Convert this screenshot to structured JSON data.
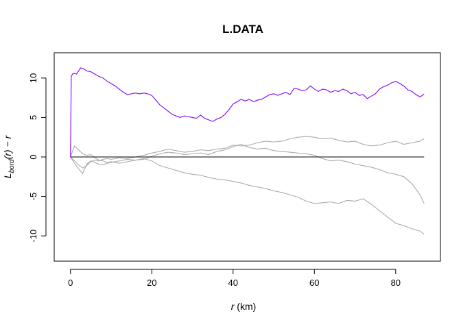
{
  "chart_data": {
    "type": "line",
    "title": "L.DATA",
    "xlabel": {
      "var": "r",
      "unit": " (km)"
    },
    "ylabel": {
      "base": "L",
      "sub": "bord",
      "arg": "(r) − r"
    },
    "xlim": [
      -4,
      91
    ],
    "ylim": [
      -13.2,
      13.2
    ],
    "x_ticks": [
      0,
      20,
      40,
      60,
      80
    ],
    "y_ticks": [
      -10,
      -5,
      0,
      5,
      10
    ],
    "x_tick_labels": [
      "0",
      "20",
      "40",
      "60",
      "80"
    ],
    "y_tick_labels": [
      "-10",
      "-5",
      "0",
      "5",
      "10"
    ],
    "colors": {
      "observed": "#8000ff",
      "simulated": "#aaaaaa",
      "reference": "#000000"
    },
    "series": [
      {
        "role": "observed",
        "x": [
          0,
          0.2,
          0.5,
          1,
          1.5,
          2,
          2.5,
          3,
          3.5,
          4,
          5,
          6,
          7,
          8,
          9,
          10,
          11,
          12,
          13,
          14,
          15,
          16,
          17,
          18,
          19,
          20,
          21,
          22,
          23,
          24,
          25,
          26,
          27,
          28,
          29,
          30,
          31,
          32,
          33,
          34,
          35,
          36,
          37,
          38,
          39,
          40,
          41,
          42,
          43,
          44,
          45,
          46,
          47,
          48,
          49,
          50,
          51,
          52,
          53,
          54,
          55,
          56,
          57,
          58,
          59,
          60,
          61,
          62,
          63,
          64,
          65,
          66,
          67,
          68,
          69,
          70,
          71,
          72,
          73,
          74,
          75,
          76,
          77,
          78,
          79,
          80,
          81,
          82,
          83,
          84,
          85,
          86,
          87
        ],
        "y": [
          0,
          10.2,
          10.5,
          10.6,
          10.5,
          10.9,
          11.3,
          11.2,
          11.1,
          10.9,
          10.8,
          10.5,
          10.2,
          10.0,
          9.6,
          9.3,
          9.0,
          8.6,
          8.2,
          7.9,
          8.0,
          8.1,
          8.0,
          8.1,
          8.0,
          7.8,
          7.2,
          6.6,
          6.2,
          5.8,
          5.4,
          5.2,
          5.0,
          5.2,
          5.1,
          5.0,
          4.9,
          5.3,
          4.9,
          4.7,
          4.5,
          4.8,
          5.0,
          5.4,
          6.0,
          6.7,
          7.0,
          7.3,
          7.1,
          7.3,
          7.0,
          7.2,
          7.3,
          7.6,
          7.9,
          8.0,
          7.8,
          8.0,
          8.2,
          7.9,
          8.7,
          8.6,
          8.4,
          8.5,
          9.0,
          8.6,
          8.3,
          8.6,
          8.5,
          8.2,
          8.4,
          8.3,
          8.6,
          8.4,
          8.0,
          8.2,
          7.8,
          7.9,
          7.4,
          7.7,
          8.0,
          8.6,
          8.9,
          9.1,
          9.4,
          9.6,
          9.3,
          9.0,
          8.5,
          8.3,
          7.9,
          7.6,
          8.0
        ]
      },
      {
        "role": "simulated",
        "x": [
          0,
          1,
          2,
          3,
          4,
          5,
          6,
          7,
          8,
          9,
          10,
          12,
          14,
          16,
          18,
          20,
          22,
          24,
          26,
          28,
          30,
          32,
          34,
          36,
          38,
          40,
          42,
          44,
          46,
          48,
          50,
          52,
          54,
          56,
          58,
          60,
          62,
          64,
          66,
          68,
          70,
          72,
          74,
          76,
          78,
          80,
          82,
          84,
          86,
          87
        ],
        "y": [
          0,
          -0.5,
          -1.0,
          -1.4,
          -1.1,
          -0.6,
          -0.4,
          -0.5,
          -0.3,
          -0.2,
          -0.3,
          -0.1,
          -0.2,
          0.0,
          0.2,
          0.5,
          0.7,
          1.0,
          0.8,
          0.6,
          0.7,
          0.9,
          0.8,
          1.0,
          1.1,
          1.5,
          1.4,
          1.5,
          1.8,
          2.0,
          1.9,
          2.0,
          2.3,
          2.5,
          2.6,
          2.5,
          2.3,
          2.4,
          2.1,
          1.9,
          2.0,
          1.6,
          1.4,
          1.5,
          1.8,
          2.0,
          1.6,
          1.8,
          2.0,
          2.3
        ]
      },
      {
        "role": "simulated",
        "x": [
          0,
          1,
          2,
          3,
          4,
          5,
          6,
          7,
          8,
          9,
          10,
          12,
          14,
          16,
          18,
          20,
          22,
          24,
          26,
          28,
          30,
          32,
          34,
          36,
          38,
          40,
          42,
          44,
          46,
          48,
          50,
          52,
          54,
          56,
          58,
          60,
          62,
          64,
          66,
          68,
          70,
          72,
          74,
          76,
          78,
          80,
          82,
          84,
          86,
          87
        ],
        "y": [
          0,
          1.4,
          0.9,
          0.4,
          0.2,
          0.3,
          -0.1,
          -0.4,
          -0.5,
          -0.7,
          -0.6,
          -0.8,
          -0.6,
          -0.4,
          -0.3,
          0.1,
          0.4,
          0.6,
          0.5,
          0.3,
          0.4,
          0.5,
          0.3,
          0.7,
          0.9,
          1.3,
          1.6,
          1.2,
          1.0,
          1.1,
          0.8,
          0.7,
          0.6,
          0.5,
          0.4,
          0.2,
          -0.2,
          -0.5,
          -0.4,
          -0.6,
          -0.9,
          -1.1,
          -1.3,
          -1.6,
          -2.0,
          -2.2,
          -2.5,
          -3.4,
          -4.8,
          -5.9
        ]
      },
      {
        "role": "simulated",
        "x": [
          0,
          1,
          2,
          3,
          4,
          5,
          6,
          7,
          8,
          9,
          10,
          12,
          14,
          16,
          18,
          20,
          22,
          24,
          26,
          28,
          30,
          32,
          34,
          36,
          38,
          40,
          42,
          44,
          46,
          48,
          50,
          52,
          54,
          56,
          58,
          60,
          62,
          64,
          66,
          68,
          70,
          72,
          74,
          76,
          78,
          80,
          82,
          84,
          86,
          87
        ],
        "y": [
          0,
          -0.8,
          -1.5,
          -2.1,
          -0.9,
          -0.5,
          -0.7,
          -0.9,
          -1.0,
          -0.8,
          -0.7,
          -0.5,
          -0.3,
          -0.4,
          -0.2,
          -0.5,
          -1.1,
          -1.4,
          -1.7,
          -2.0,
          -2.2,
          -2.3,
          -2.6,
          -2.8,
          -2.9,
          -3.1,
          -3.3,
          -3.6,
          -3.8,
          -4.0,
          -4.3,
          -4.5,
          -4.8,
          -5.1,
          -5.6,
          -5.9,
          -5.8,
          -5.7,
          -5.9,
          -5.5,
          -5.6,
          -5.3,
          -6.0,
          -6.8,
          -7.6,
          -8.4,
          -8.7,
          -9.1,
          -9.4,
          -9.8
        ]
      }
    ],
    "reference_line": {
      "x": [
        0,
        87
      ],
      "y": [
        0,
        0
      ]
    }
  }
}
